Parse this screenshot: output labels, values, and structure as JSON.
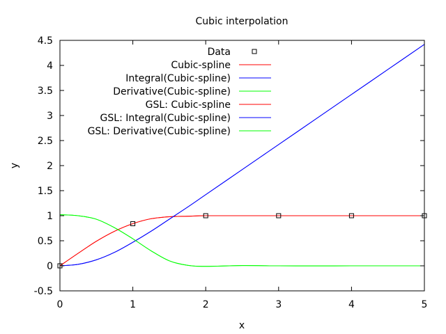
{
  "chart_data": {
    "type": "line",
    "title": "Cubic interpolation",
    "xlabel": "x",
    "ylabel": "y",
    "xlim": [
      0,
      5
    ],
    "ylim": [
      -0.5,
      4.5
    ],
    "xticks": [
      "0",
      "1",
      "2",
      "3",
      "4",
      "5"
    ],
    "yticks": [
      "-0.5",
      "0",
      "0.5",
      "1",
      "1.5",
      "2",
      "2.5",
      "3",
      "3.5",
      "4",
      "4.5"
    ],
    "grid": false,
    "legend_position": "top-left",
    "data_points": {
      "name": "Data",
      "marker": "open-square",
      "color": "#000000",
      "x": [
        0,
        1,
        2,
        3,
        4,
        5
      ],
      "y": [
        0,
        0.841,
        1,
        1,
        1,
        1
      ]
    },
    "series": [
      {
        "name": "Cubic-spline",
        "color": "#ff0000",
        "x": [
          0,
          0.25,
          0.5,
          0.75,
          1,
          1.25,
          1.5,
          1.75,
          2,
          2.5,
          3,
          3.5,
          4,
          4.5,
          5
        ],
        "y": [
          0,
          0.25,
          0.49,
          0.69,
          0.841,
          0.94,
          0.98,
          0.99,
          1,
          1,
          1,
          1,
          1,
          1,
          1
        ]
      },
      {
        "name": "Integral(Cubic-spline)",
        "color": "#0000ff",
        "x": [
          0,
          0.25,
          0.5,
          0.75,
          1,
          1.25,
          1.5,
          1.75,
          2,
          2.5,
          3,
          3.5,
          4,
          4.5,
          5
        ],
        "y": [
          0,
          0.03,
          0.12,
          0.27,
          0.47,
          0.69,
          0.93,
          1.17,
          1.42,
          1.92,
          2.42,
          2.92,
          3.42,
          3.92,
          4.42
        ]
      },
      {
        "name": "Derivative(Cubic-spline)",
        "color": "#00ff00",
        "x": [
          0,
          0.25,
          0.5,
          0.75,
          1,
          1.25,
          1.5,
          1.75,
          2,
          2.5,
          3,
          3.5,
          4,
          4.5,
          5
        ],
        "y": [
          1.02,
          1.0,
          0.93,
          0.76,
          0.54,
          0.3,
          0.1,
          0.01,
          -0.01,
          0.005,
          0,
          -0.002,
          0,
          0,
          0
        ]
      },
      {
        "name": "GSL: Cubic-spline",
        "color": "#ff0000",
        "x": [
          0,
          0.25,
          0.5,
          0.75,
          1,
          1.25,
          1.5,
          1.75,
          2,
          2.5,
          3,
          3.5,
          4,
          4.5,
          5
        ],
        "y": [
          0,
          0.25,
          0.49,
          0.69,
          0.841,
          0.94,
          0.98,
          0.99,
          1,
          1,
          1,
          1,
          1,
          1,
          1
        ]
      },
      {
        "name": "GSL: Integral(Cubic-spline)",
        "color": "#0000ff",
        "x": [
          0,
          0.25,
          0.5,
          0.75,
          1,
          1.25,
          1.5,
          1.75,
          2,
          2.5,
          3,
          3.5,
          4,
          4.5,
          5
        ],
        "y": [
          0,
          0.03,
          0.12,
          0.27,
          0.47,
          0.69,
          0.93,
          1.17,
          1.42,
          1.92,
          2.42,
          2.92,
          3.42,
          3.92,
          4.42
        ]
      },
      {
        "name": "GSL: Derivative(Cubic-spline)",
        "color": "#00ff00",
        "x": [
          0,
          0.25,
          0.5,
          0.75,
          1,
          1.25,
          1.5,
          1.75,
          2,
          2.5,
          3,
          3.5,
          4,
          4.5,
          5
        ],
        "y": [
          1.02,
          1.0,
          0.93,
          0.76,
          0.54,
          0.3,
          0.1,
          0.01,
          -0.01,
          0.005,
          0,
          -0.002,
          0,
          0,
          0
        ]
      }
    ]
  }
}
